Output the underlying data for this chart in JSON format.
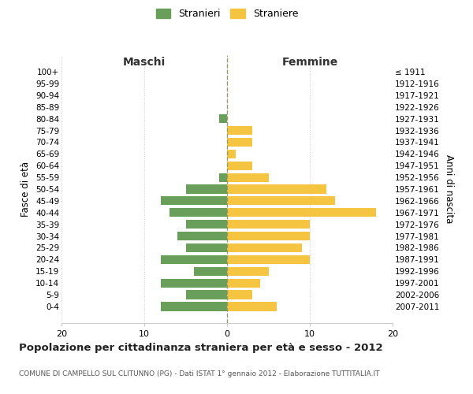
{
  "age_groups": [
    "100+",
    "95-99",
    "90-94",
    "85-89",
    "80-84",
    "75-79",
    "70-74",
    "65-69",
    "60-64",
    "55-59",
    "50-54",
    "45-49",
    "40-44",
    "35-39",
    "30-34",
    "25-29",
    "20-24",
    "15-19",
    "10-14",
    "5-9",
    "0-4"
  ],
  "birth_years": [
    "≤ 1911",
    "1912-1916",
    "1917-1921",
    "1922-1926",
    "1927-1931",
    "1932-1936",
    "1937-1941",
    "1942-1946",
    "1947-1951",
    "1952-1956",
    "1957-1961",
    "1962-1966",
    "1967-1971",
    "1972-1976",
    "1977-1981",
    "1982-1986",
    "1987-1991",
    "1992-1996",
    "1997-2001",
    "2002-2006",
    "2007-2011"
  ],
  "males": [
    0,
    0,
    0,
    0,
    1,
    0,
    0,
    0,
    0,
    1,
    5,
    8,
    7,
    5,
    6,
    5,
    8,
    4,
    8,
    5,
    8
  ],
  "females": [
    0,
    0,
    0,
    0,
    0,
    3,
    3,
    1,
    3,
    5,
    12,
    13,
    18,
    10,
    10,
    9,
    10,
    5,
    4,
    3,
    6
  ],
  "male_color": "#6a9f5b",
  "female_color": "#f5c542",
  "background_color": "#ffffff",
  "grid_color": "#cccccc",
  "dashed_line_color": "#999966",
  "xlim": [
    -20,
    20
  ],
  "xticks": [
    -20,
    -10,
    0,
    10,
    20
  ],
  "xtick_labels": [
    "20",
    "10",
    "0",
    "10",
    "20"
  ],
  "title": "Popolazione per cittadinanza straniera per età e sesso - 2012",
  "subtitle": "COMUNE DI CAMPELLO SUL CLITUNNO (PG) - Dati ISTAT 1° gennaio 2012 - Elaborazione TUTTITALIA.IT",
  "ylabel_left": "Fasce di età",
  "ylabel_right": "Anni di nascita",
  "header_left": "Maschi",
  "header_right": "Femmine",
  "legend_stranieri": "Stranieri",
  "legend_straniere": "Straniere",
  "bar_height": 0.75
}
